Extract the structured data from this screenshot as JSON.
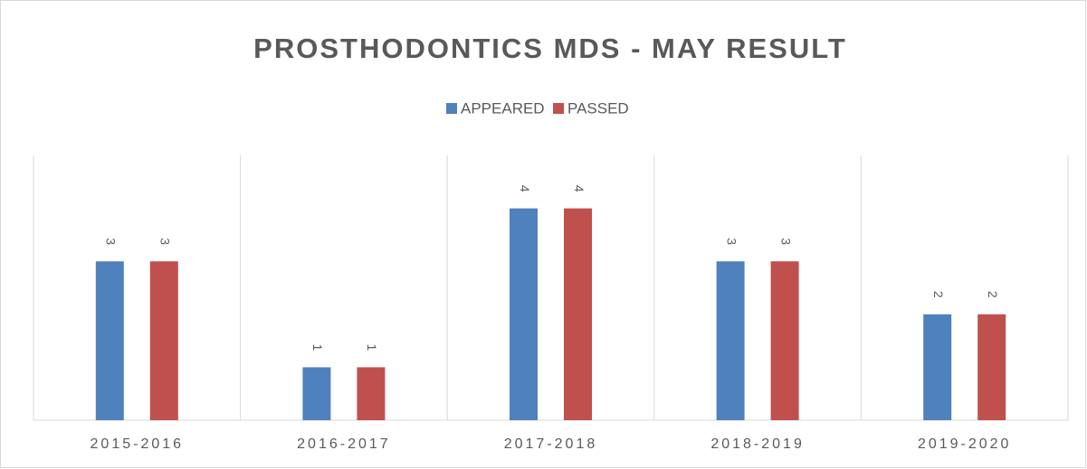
{
  "chart_data": {
    "type": "bar",
    "title": "PROSTHODONTICS MDS - MAY RESULT",
    "categories": [
      "2015-2016",
      "2016-2017",
      "2017-2018",
      "2018-2019",
      "2019-2020"
    ],
    "series": [
      {
        "name": "APPEARED",
        "color": "#4f81bd",
        "values": [
          3,
          1,
          4,
          3,
          2
        ]
      },
      {
        "name": "PASSED",
        "color": "#c0504d",
        "values": [
          3,
          1,
          4,
          3,
          2
        ]
      }
    ],
    "ylim": [
      0,
      5
    ],
    "legend": "top",
    "data_labels": true
  }
}
